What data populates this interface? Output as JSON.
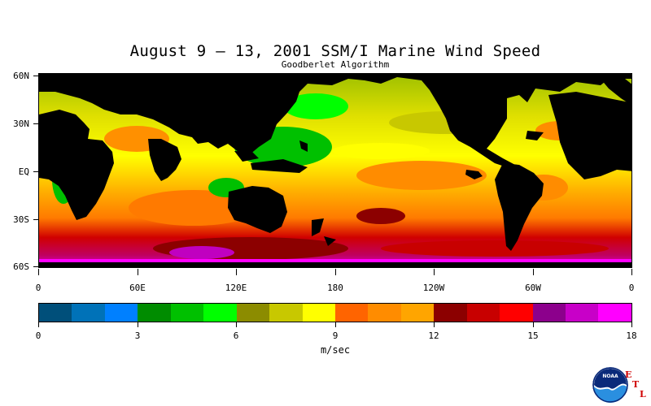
{
  "title": "August 9 – 13, 2001 SSM/I Marine Wind Speed",
  "subtitle": "Goodberlet Algorithm",
  "lat_labels": [
    "60N",
    "30N",
    "EQ",
    "30S",
    "60S"
  ],
  "lon_labels": [
    "0",
    "60E",
    "120E",
    "180",
    "120W",
    "60W",
    "0"
  ],
  "colorbar": {
    "colors": [
      "#004f7a",
      "#0072b8",
      "#0080ff",
      "#008c00",
      "#00c000",
      "#00ff00",
      "#8c8c00",
      "#c8c800",
      "#ffff00",
      "#ff6400",
      "#ff8c00",
      "#ffa500",
      "#8c0000",
      "#c80000",
      "#ff0000",
      "#8c008c",
      "#c800c8",
      "#ff00ff"
    ],
    "tick_labels": [
      "0",
      "3",
      "6",
      "9",
      "12",
      "15",
      "18"
    ],
    "units": "m/sec"
  },
  "logo": {
    "name": "NOAA",
    "letters": [
      "E",
      "T",
      "L"
    ]
  }
}
